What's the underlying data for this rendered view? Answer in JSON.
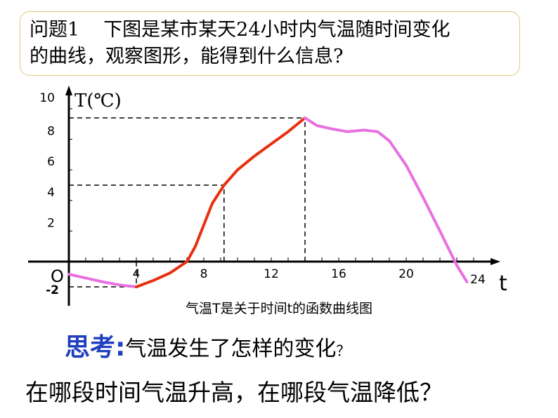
{
  "question": {
    "label": "问题1",
    "text_line1": "下图是某市某天24小时内气温随时间变化",
    "text_line2": "的曲线，观察图形，能得到什么信息?"
  },
  "chart_data": {
    "type": "line",
    "title": "",
    "caption": "气温T是关于时间t的函数曲线图",
    "xlabel": "t",
    "ylabel": "T(℃)",
    "origin_label": "O",
    "xlim": [
      0,
      24
    ],
    "ylim": [
      -2,
      10
    ],
    "x_ticks": [
      "4",
      "8",
      "12",
      "16",
      "20",
      "24"
    ],
    "y_ticks": [
      "10",
      "8",
      "6",
      "4",
      "2",
      "-2"
    ],
    "series": [
      {
        "color": "#e870e0",
        "points": [
          [
            0,
            -1
          ],
          [
            1,
            -1.3
          ],
          [
            2,
            -1.6
          ],
          [
            3,
            -1.85
          ],
          [
            4,
            -2
          ]
        ]
      },
      {
        "color": "#e83010",
        "points": [
          [
            4,
            -2
          ],
          [
            5,
            -1.5
          ],
          [
            6,
            -0.9
          ],
          [
            7,
            0
          ],
          [
            7.5,
            1
          ],
          [
            8,
            2.4
          ],
          [
            8.5,
            3.8
          ],
          [
            9.2,
            5
          ],
          [
            10,
            6
          ],
          [
            11,
            6.9
          ],
          [
            12,
            7.7
          ],
          [
            13,
            8.5
          ],
          [
            14,
            9.4
          ]
        ]
      },
      {
        "color": "#e870e0",
        "points": [
          [
            14,
            9.4
          ],
          [
            14.7,
            8.9
          ],
          [
            15.5,
            8.7
          ],
          [
            16.5,
            8.5
          ],
          [
            17.5,
            8.6
          ],
          [
            18.3,
            8.5
          ],
          [
            19,
            7.9
          ],
          [
            20,
            6.3
          ],
          [
            21,
            4.2
          ],
          [
            22,
            2
          ],
          [
            23,
            -0.3
          ],
          [
            23.6,
            -1.6
          ]
        ]
      }
    ],
    "reference_lines": [
      {
        "t": 4,
        "T": -2
      },
      {
        "t": 9.2,
        "T": 5
      },
      {
        "t": 14,
        "T": 9.4
      }
    ]
  },
  "think": {
    "keyword": "思考:",
    "text": "气温发生了怎样的变化",
    "mark": "？"
  },
  "ask": "在哪段时间气温升高，在哪段气温降低？"
}
